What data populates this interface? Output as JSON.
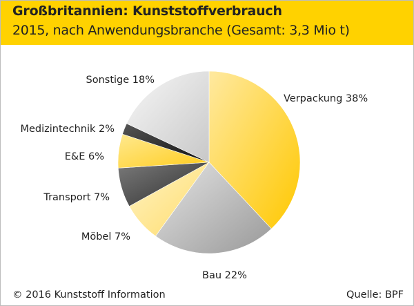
{
  "header": {
    "title": "Großbritannien: Kunststoffverbrauch",
    "subtitle": "2015, nach Anwendungsbranche (Gesamt: 3,3 Mio t)"
  },
  "footer": {
    "copyright": "© 2016 Kunststoff Information",
    "source": "Quelle: BPF"
  },
  "colors": {
    "header_bg": "#ffd200"
  },
  "chart_data": {
    "type": "pie",
    "title": "Großbritannien: Kunststoffverbrauch",
    "subtitle": "2015, nach Anwendungsbranche (Gesamt: 3,3 Mio t)",
    "unit": "%",
    "slices": [
      {
        "name": "Verpackung",
        "value": 38,
        "label": "Verpackung 38%",
        "color": "#ffd21f",
        "gradient": [
          "#ffe9a0",
          "#ffc800"
        ]
      },
      {
        "name": "Bau",
        "value": 22,
        "label": "Bau 22%",
        "color": "#a9a9a9",
        "gradient": [
          "#e4e4e4",
          "#999999"
        ]
      },
      {
        "name": "Möbel",
        "value": 7,
        "label": "Möbel 7%",
        "color": "#ffe487",
        "gradient": [
          "#fff3c4",
          "#ffdc6a"
        ]
      },
      {
        "name": "Transport",
        "value": 7,
        "label": "Transport 7%",
        "color": "#4a4a4a",
        "gradient": [
          "#7a7a7a",
          "#2e2e2e"
        ]
      },
      {
        "name": "E&E",
        "value": 6,
        "label": "E&E 6%",
        "color": "#ffda50",
        "gradient": [
          "#ffe98f",
          "#ffcc1c"
        ]
      },
      {
        "name": "Medizintechnik",
        "value": 2,
        "label": "Medizintechnik 2%",
        "color": "#222222",
        "gradient": [
          "#555555",
          "#111111"
        ]
      },
      {
        "name": "Sonstige",
        "value": 18,
        "label": "Sonstige 18%",
        "color": "#dcdcdc",
        "gradient": [
          "#f7f7f7",
          "#c8c8c8"
        ]
      }
    ]
  }
}
